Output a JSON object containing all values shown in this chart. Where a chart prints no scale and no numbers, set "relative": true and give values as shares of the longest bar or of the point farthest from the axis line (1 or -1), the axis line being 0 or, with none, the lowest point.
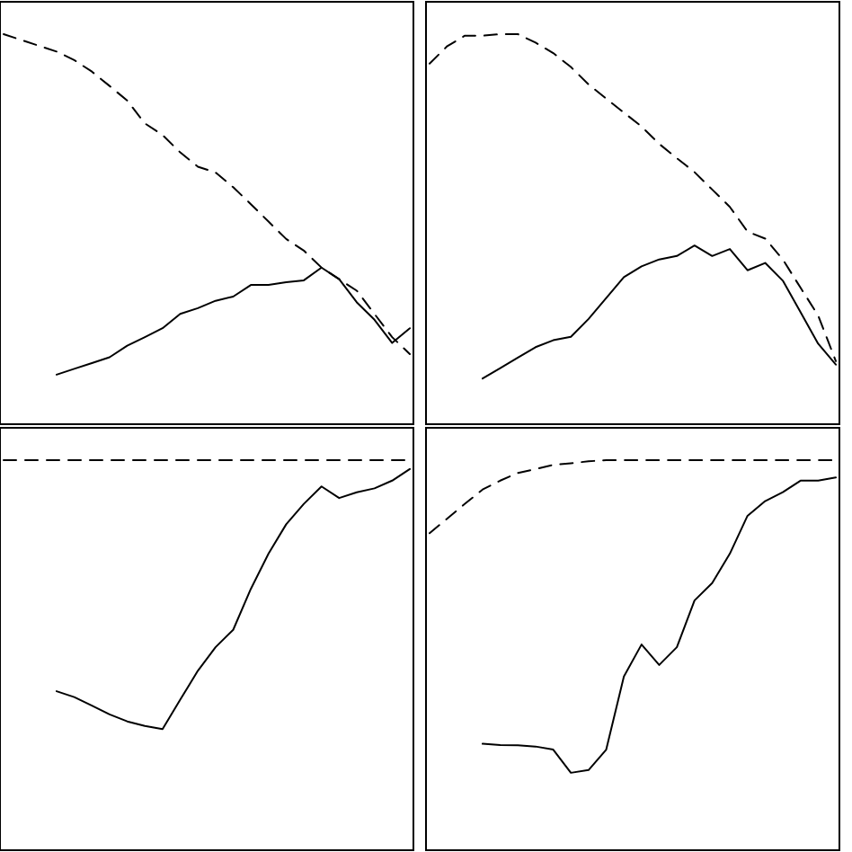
{
  "chart_data": [
    {
      "type": "line",
      "relative": true,
      "categories": [
        null,
        null,
        null,
        null,
        null,
        null,
        null,
        null,
        null,
        null,
        null,
        null,
        null,
        null,
        null,
        null,
        null,
        null,
        null,
        null,
        null,
        null,
        null,
        null
      ],
      "series": [
        {
          "color": "#000000",
          "line_style": "solid",
          "values": [
            null,
            null,
            null,
            0.119,
            0.134,
            0.149,
            0.164,
            0.194,
            0.216,
            0.239,
            0.276,
            0.291,
            0.31,
            0.321,
            0.351,
            0.351,
            0.358,
            0.363,
            0.396,
            0.366,
            0.306,
            0.261,
            0.201,
            0.239
          ]
        },
        {
          "color": "#000000",
          "line_style": "dashed",
          "values": [
            1,
            0.985,
            0.97,
            0.955,
            0.933,
            0.903,
            0.866,
            0.828,
            0.769,
            0.739,
            0.694,
            0.657,
            0.642,
            0.604,
            0.56,
            0.515,
            0.47,
            0.44,
            0.396,
            0.366,
            0.336,
            0.276,
            0.216,
            0.172
          ]
        }
      ]
    },
    {
      "type": "line",
      "relative": true,
      "categories": [
        null,
        null,
        null,
        null,
        null,
        null,
        null,
        null,
        null,
        null,
        null,
        null,
        null,
        null,
        null,
        null,
        null,
        null,
        null,
        null,
        null,
        null,
        null,
        null
      ],
      "series": [
        {
          "color": "#000000",
          "line_style": "solid",
          "values": [
            null,
            null,
            null,
            0.109,
            0.136,
            0.163,
            0.19,
            0.208,
            0.217,
            0.263,
            0.317,
            0.371,
            0.399,
            0.417,
            0.426,
            0.453,
            0.426,
            0.444,
            0.389,
            0.408,
            0.362,
            0.281,
            0.199,
            0.145
          ]
        },
        {
          "color": "#000000",
          "line_style": "dashed",
          "values": [
            0.924,
            0.969,
            0.996,
            0.996,
            1,
            1,
            0.978,
            0.951,
            0.915,
            0.87,
            0.833,
            0.797,
            0.761,
            0.716,
            0.679,
            0.643,
            0.598,
            0.553,
            0.489,
            0.471,
            0.417,
            0.344,
            0.272,
            0.154
          ]
        }
      ]
    },
    {
      "type": "line",
      "relative": true,
      "categories": [
        null,
        null,
        null,
        null,
        null,
        null,
        null,
        null,
        null,
        null,
        null,
        null,
        null,
        null,
        null,
        null,
        null,
        null,
        null,
        null,
        null,
        null,
        null,
        null
      ],
      "series": [
        {
          "color": "#000000",
          "line_style": "solid",
          "values": [
            null,
            null,
            null,
            0.402,
            0.387,
            0.365,
            0.342,
            0.324,
            0.312,
            0.304,
            0.38,
            0.455,
            0.516,
            0.561,
            0.667,
            0.758,
            0.834,
            0.887,
            0.932,
            0.902,
            0.917,
            0.927,
            0.947,
            0.977
          ]
        },
        {
          "color": "#000000",
          "line_style": "dashed",
          "values": [
            1,
            1,
            1,
            1,
            1,
            1,
            1,
            1,
            1,
            1,
            1,
            1,
            1,
            1,
            1,
            1,
            1,
            1,
            1,
            1,
            1,
            1,
            1,
            1
          ]
        }
      ]
    },
    {
      "type": "line",
      "relative": true,
      "categories": [
        null,
        null,
        null,
        null,
        null,
        null,
        null,
        null,
        null,
        null,
        null,
        null,
        null,
        null,
        null,
        null,
        null,
        null,
        null,
        null,
        null,
        null,
        null,
        null
      ],
      "series": [
        {
          "color": "#000000",
          "line_style": "solid",
          "values": [
            null,
            null,
            null,
            0.266,
            0.263,
            0.262,
            0.259,
            0.251,
            0.191,
            0.198,
            0.251,
            0.44,
            0.523,
            0.47,
            0.516,
            0.637,
            0.682,
            0.758,
            0.856,
            0.894,
            0.917,
            0.947,
            0.947,
            0.955
          ]
        },
        {
          "color": "#000000",
          "line_style": "dashed",
          "values": [
            0.811,
            0.849,
            0.887,
            0.924,
            0.947,
            0.967,
            0.977,
            0.988,
            0.992,
            0.997,
            1,
            1,
            1,
            1,
            1,
            1,
            1,
            1,
            1,
            1,
            1,
            1,
            1,
            1
          ]
        }
      ]
    }
  ]
}
